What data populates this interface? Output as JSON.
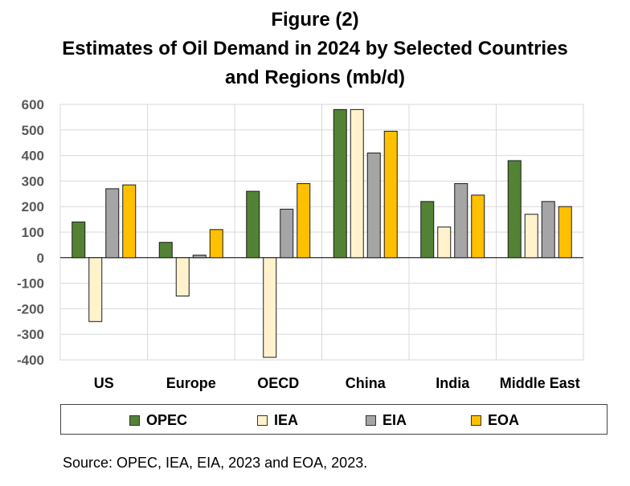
{
  "title_lines": [
    "Figure (2)",
    "Estimates of Oil Demand in 2024 by Selected Countries",
    "and Regions (mb/d)"
  ],
  "source": "Source: OPEC, IEA, EIA, 2023 and EOA, 2023.",
  "chart_data": {
    "type": "bar",
    "title": "Figure (2) Estimates of Oil Demand in 2024 by Selected Countries and Regions (mb/d)",
    "categories": [
      "US",
      "Europe",
      "OECD",
      "China",
      "India",
      "Middle East"
    ],
    "series": [
      {
        "name": "OPEC",
        "color": "#548235",
        "values": [
          140,
          60,
          260,
          580,
          220,
          380
        ]
      },
      {
        "name": "IEA",
        "color": "#FFF2CC",
        "values": [
          -250,
          -150,
          -390,
          580,
          120,
          170
        ]
      },
      {
        "name": "EIA",
        "color": "#A5A5A5",
        "values": [
          270,
          10,
          190,
          410,
          290,
          220
        ]
      },
      {
        "name": "EOA",
        "color": "#FFC000",
        "values": [
          285,
          110,
          290,
          495,
          245,
          200
        ]
      }
    ],
    "y_ticks": [
      "600",
      "500",
      "400",
      "300",
      "200",
      "100",
      "0",
      "-100",
      "-200",
      "-300",
      "-400"
    ],
    "ylim": [
      -400,
      600
    ],
    "grid": true,
    "legend_position": "bottom"
  }
}
